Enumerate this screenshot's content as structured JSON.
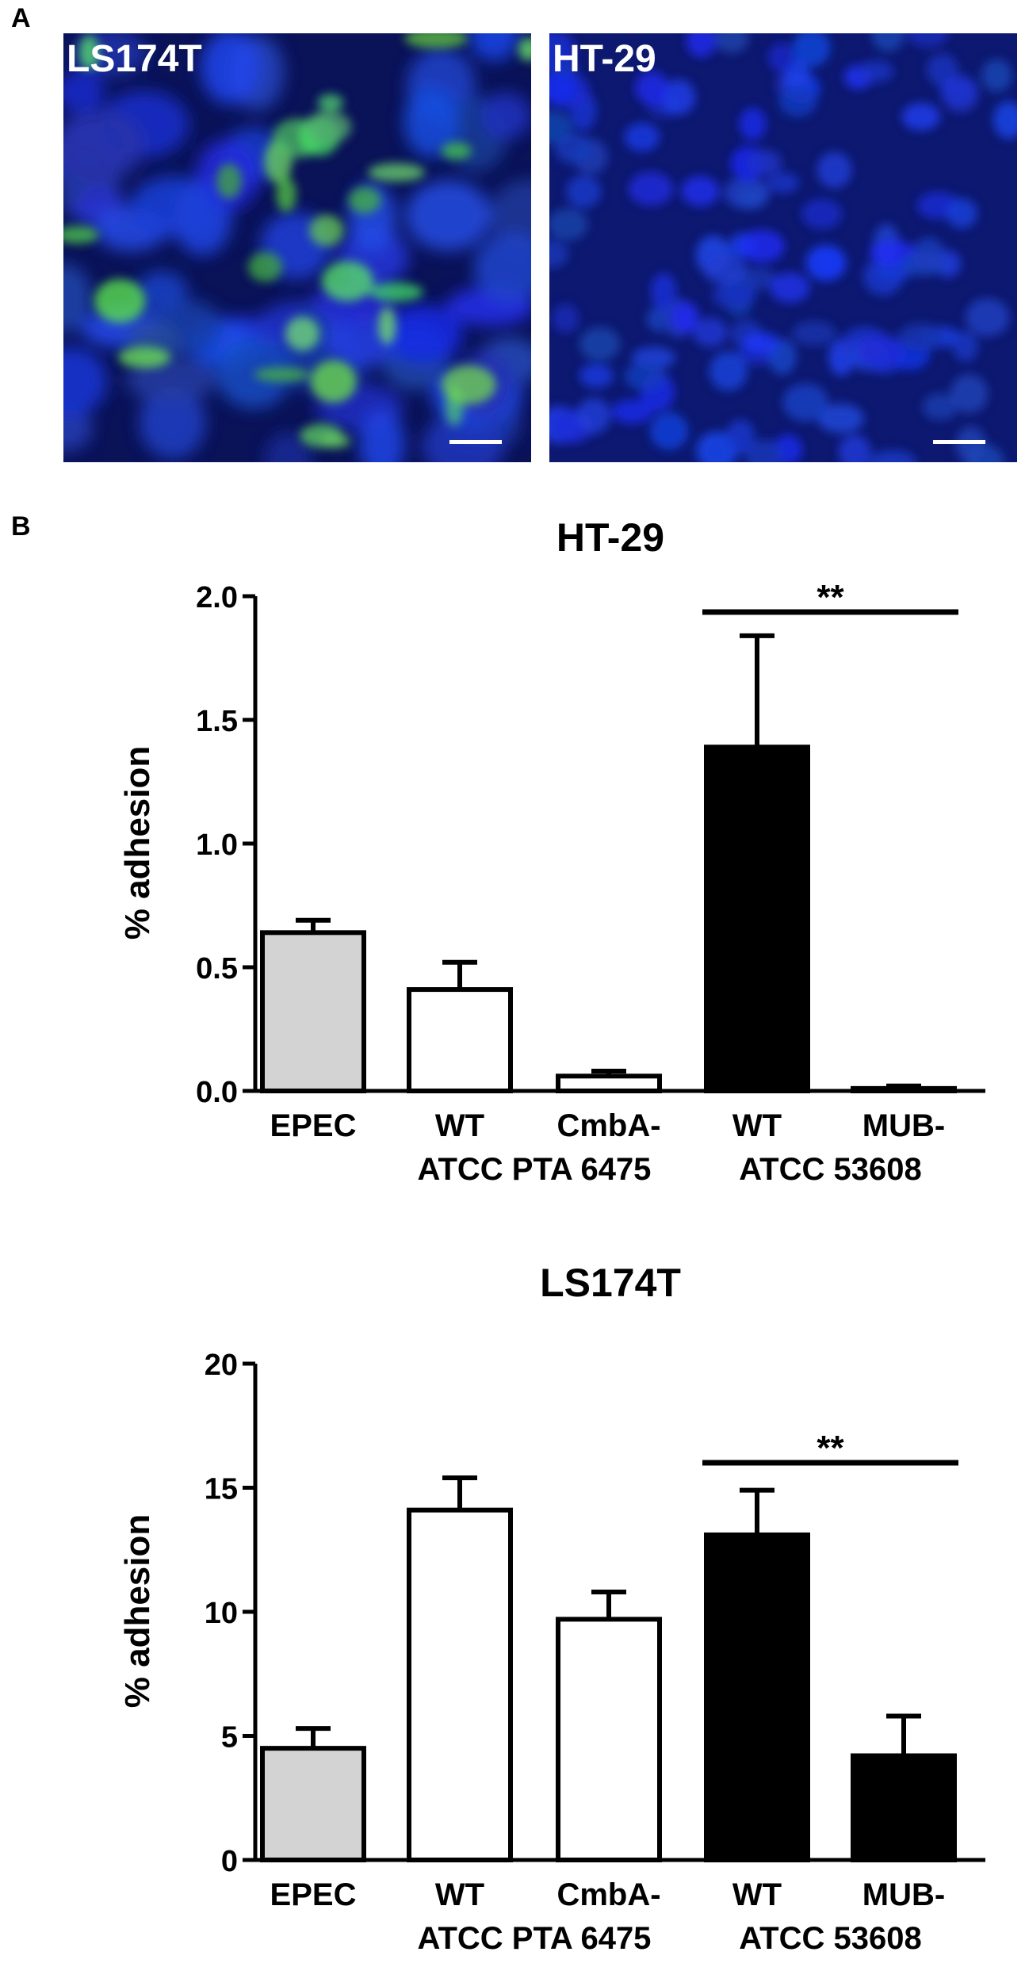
{
  "panel_a": {
    "label": "A",
    "images": [
      {
        "title": "LS174T"
      },
      {
        "title": "HT-29"
      }
    ]
  },
  "panel_b": {
    "label": "B"
  },
  "colors": {
    "epec": "#d3d3d3",
    "open_bar": "#ffffff",
    "filled_bar": "#000000",
    "stroke": "#000000"
  },
  "chart_data": [
    {
      "type": "bar",
      "title": "HT-29",
      "ylabel": "% adhesion",
      "xlabel": "",
      "ylim": [
        0,
        2.0
      ],
      "yticks": [
        "0.0",
        "0.5",
        "1.0",
        "1.5",
        "2.0"
      ],
      "ytick_values": [
        0,
        0.5,
        1.0,
        1.5,
        2.0
      ],
      "categories": [
        "EPEC",
        "WT",
        "CmbA-",
        "WT",
        "MUB-"
      ],
      "group_labels": [
        "ATCC PTA 6475",
        "ATCC 53608"
      ],
      "values": [
        0.64,
        0.41,
        0.06,
        1.39,
        0.01
      ],
      "errors": [
        0.05,
        0.11,
        0.02,
        0.45,
        0.01
      ],
      "bar_fill": [
        "epec",
        "open_bar",
        "open_bar",
        "filled_bar",
        "filled_bar"
      ],
      "significance": {
        "text": "**",
        "between": [
          3,
          4
        ]
      }
    },
    {
      "type": "bar",
      "title": "LS174T",
      "ylabel": "% adhesion",
      "xlabel": "",
      "ylim": [
        0,
        20
      ],
      "yticks": [
        "0",
        "5",
        "10",
        "15",
        "20"
      ],
      "ytick_values": [
        0,
        5,
        10,
        15,
        20
      ],
      "categories": [
        "EPEC",
        "WT",
        "CmbA-",
        "WT",
        "MUB-"
      ],
      "group_labels": [
        "ATCC PTA 6475",
        "ATCC 53608"
      ],
      "values": [
        4.5,
        14.1,
        9.7,
        13.1,
        4.2
      ],
      "errors": [
        0.8,
        1.3,
        1.1,
        1.8,
        1.6
      ],
      "bar_fill": [
        "epec",
        "open_bar",
        "open_bar",
        "filled_bar",
        "filled_bar"
      ],
      "significance": {
        "text": "**",
        "between": [
          3,
          4
        ]
      }
    }
  ]
}
